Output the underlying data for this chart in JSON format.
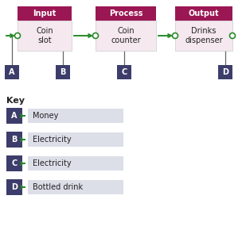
{
  "bg_color": "#ffffff",
  "header_color": "#9b1754",
  "box_color": "#f5e8ef",
  "label_color": "#3d3d6b",
  "arrow_color": "#2a8a2a",
  "key_box_color": "#dcdee8",
  "header_text_color": "#ffffff",
  "headers": [
    "Input",
    "Process",
    "Output"
  ],
  "box_labels": [
    "Coin\nslot",
    "Coin\ncounter",
    "Drinks\ndispenser"
  ],
  "node_labels": [
    "A",
    "B",
    "C",
    "D"
  ],
  "key_title": "Key",
  "key_items": [
    {
      "label": "A",
      "text": "Money"
    },
    {
      "label": "B",
      "text": "Electricity"
    },
    {
      "label": "C",
      "text": "Electricity"
    },
    {
      "label": "D",
      "text": "Bottled drink"
    }
  ]
}
